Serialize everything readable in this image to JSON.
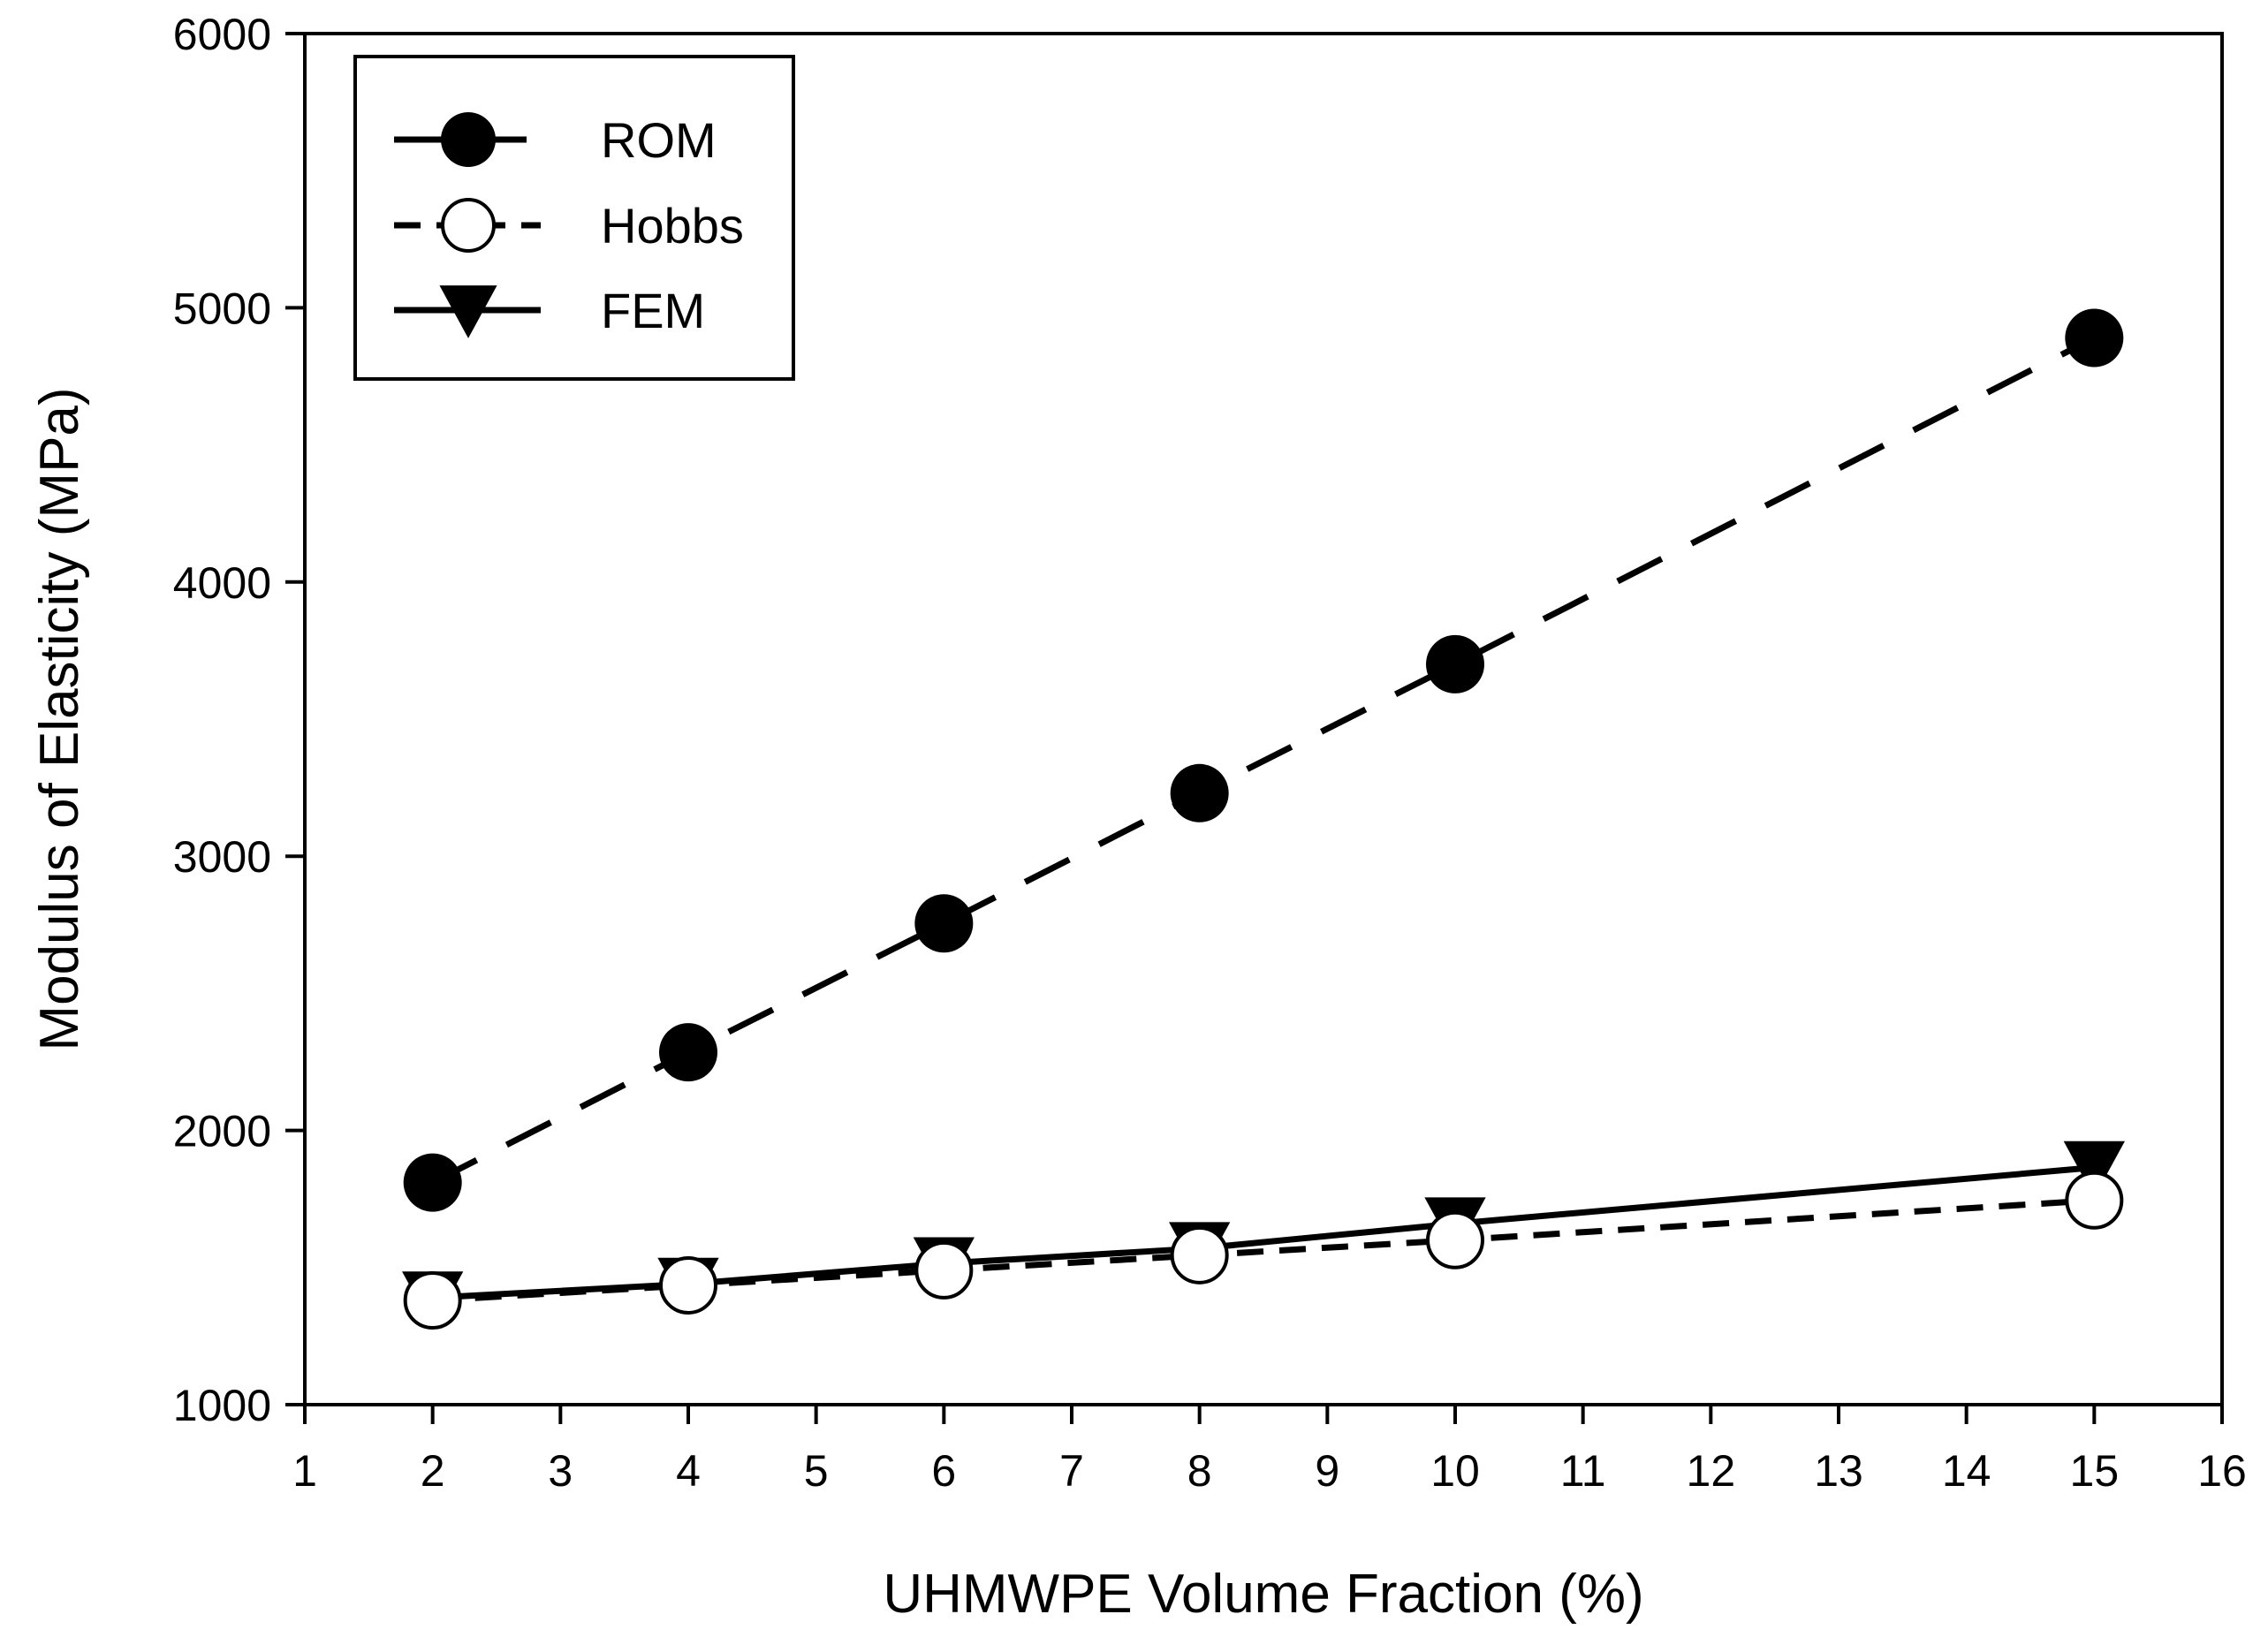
{
  "chart_data": {
    "type": "line",
    "title": "",
    "xlabel": "UHMWPE Volume Fraction (%)",
    "ylabel": "Modulus of Elasticity (MPa)",
    "xlim": [
      1,
      16
    ],
    "ylim": [
      1000,
      6000
    ],
    "x_ticks": [
      1,
      2,
      3,
      4,
      5,
      6,
      7,
      8,
      9,
      10,
      11,
      12,
      13,
      14,
      15,
      16
    ],
    "x_tick_labels": [
      "1",
      "2",
      "3",
      "4",
      "5",
      "6",
      "7",
      "8",
      "9",
      "10",
      "11",
      "12",
      "13",
      "14",
      "15",
      "16"
    ],
    "y_ticks": [
      1000,
      2000,
      3000,
      4000,
      5000,
      6000
    ],
    "y_tick_labels": [
      "1000",
      "2000",
      "3000",
      "4000",
      "5000",
      "6000"
    ],
    "grid": false,
    "legend_position": "top-left",
    "x": [
      2,
      4,
      6,
      8,
      10,
      15
    ],
    "series": [
      {
        "name": "ROM",
        "marker": "filled-circle",
        "line_style": "long-dash",
        "color": "#000000",
        "values": [
          1810,
          2285,
          2755,
          3230,
          3700,
          4890
        ]
      },
      {
        "name": "Hobbs",
        "marker": "open-circle",
        "line_style": "short-dash",
        "color": "#000000",
        "values": [
          1380,
          1435,
          1490,
          1545,
          1600,
          1745
        ]
      },
      {
        "name": "FEM",
        "marker": "filled-triangle-down",
        "line_style": "solid",
        "color": "#000000",
        "values": [
          1390,
          1440,
          1515,
          1570,
          1660,
          1865
        ]
      }
    ]
  }
}
